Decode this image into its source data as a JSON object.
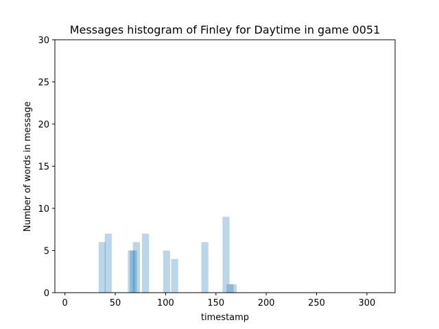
{
  "chart_data": {
    "type": "bar",
    "title": "Messages histogram of Finley for Daytime in game 0051",
    "xlabel": "timestamp",
    "ylabel": "Number of words in message",
    "xlim": [
      -10,
      328
    ],
    "ylim": [
      0,
      30
    ],
    "xticks": [
      0,
      50,
      100,
      150,
      200,
      250,
      300
    ],
    "yticks": [
      0,
      5,
      10,
      15,
      20,
      25,
      30
    ],
    "bar_width": 7,
    "bar_color": "#1f77b4",
    "bar_opacity": 0.3,
    "grid": false,
    "bars": [
      {
        "x": 37,
        "y": 6
      },
      {
        "x": 43,
        "y": 7
      },
      {
        "x": 66,
        "y": 5
      },
      {
        "x": 68,
        "y": 5
      },
      {
        "x": 71,
        "y": 6
      },
      {
        "x": 80,
        "y": 7
      },
      {
        "x": 101,
        "y": 5
      },
      {
        "x": 109,
        "y": 4
      },
      {
        "x": 139,
        "y": 6
      },
      {
        "x": 160,
        "y": 9
      },
      {
        "x": 164,
        "y": 1
      },
      {
        "x": 167,
        "y": 1
      }
    ]
  }
}
